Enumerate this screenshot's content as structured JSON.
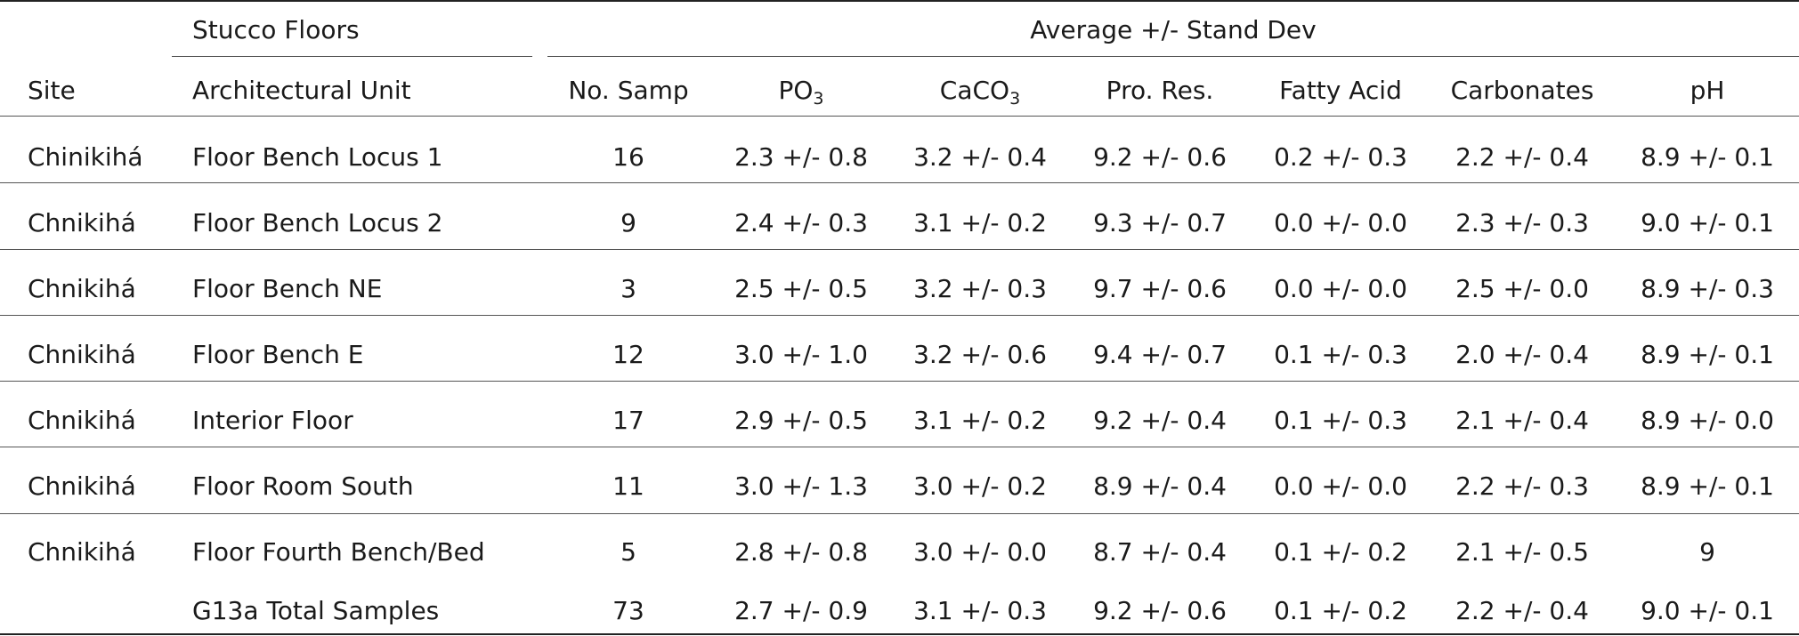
{
  "header": {
    "group_left": "Stucco Floors",
    "group_right": "Average +/- Stand Dev",
    "columns": {
      "site": "Site",
      "unit": "Architectural Unit",
      "nsamp": "No. Samp",
      "po3_main": "PO",
      "po3_sub": "3",
      "caco3_main": "CaCO",
      "caco3_sub": "3",
      "prores": "Pro. Res.",
      "fatty": "Fatty Acid",
      "carb": "Carbonates",
      "ph": "pH"
    }
  },
  "rows": [
    {
      "site": "Chinikihá",
      "unit": "Floor Bench Locus 1",
      "n": "16",
      "po3": "2.3 +/- 0.8",
      "caco3": "3.2 +/- 0.4",
      "prores": "9.2 +/- 0.6",
      "fatty": "0.2 +/- 0.3",
      "carb": "2.2 +/- 0.4",
      "ph": "8.9 +/- 0.1"
    },
    {
      "site": "Chnikihá",
      "unit": "Floor Bench Locus 2",
      "n": "9",
      "po3": "2.4 +/- 0.3",
      "caco3": "3.1 +/- 0.2",
      "prores": "9.3 +/- 0.7",
      "fatty": "0.0 +/- 0.0",
      "carb": "2.3 +/- 0.3",
      "ph": "9.0 +/- 0.1"
    },
    {
      "site": "Chnikihá",
      "unit": "Floor Bench NE",
      "n": "3",
      "po3": "2.5 +/- 0.5",
      "caco3": "3.2 +/- 0.3",
      "prores": "9.7 +/- 0.6",
      "fatty": "0.0 +/- 0.0",
      "carb": "2.5 +/- 0.0",
      "ph": "8.9 +/- 0.3"
    },
    {
      "site": "Chnikihá",
      "unit": "Floor Bench E",
      "n": "12",
      "po3": "3.0 +/- 1.0",
      "caco3": "3.2 +/- 0.6",
      "prores": "9.4 +/- 0.7",
      "fatty": "0.1 +/- 0.3",
      "carb": "2.0 +/- 0.4",
      "ph": "8.9 +/- 0.1"
    },
    {
      "site": "Chnikihá",
      "unit": "Interior Floor",
      "n": "17",
      "po3": "2.9 +/- 0.5",
      "caco3": "3.1 +/- 0.2",
      "prores": "9.2 +/- 0.4",
      "fatty": "0.1 +/- 0.3",
      "carb": "2.1 +/- 0.4",
      "ph": "8.9 +/- 0.0"
    },
    {
      "site": "Chnikihá",
      "unit": "Floor Room South",
      "n": "11",
      "po3": "3.0 +/- 1.3",
      "caco3": "3.0 +/- 0.2",
      "prores": "8.9 +/- 0.4",
      "fatty": "0.0 +/- 0.0",
      "carb": "2.2 +/- 0.3",
      "ph": "8.9 +/- 0.1"
    },
    {
      "site": "Chnikihá",
      "unit": "Floor Fourth Bench/Bed",
      "n": "5",
      "po3": "2.8 +/- 0.8",
      "caco3": "3.0 +/- 0.0",
      "prores": "8.7 +/- 0.4",
      "fatty": "0.1 +/- 0.2",
      "carb": "2.1 +/- 0.5",
      "ph": "9"
    },
    {
      "site": "",
      "unit": "G13a Total Samples",
      "n": "73",
      "po3": "2.7 +/- 0.9",
      "caco3": "3.1 +/- 0.3",
      "prores": "9.2 +/- 0.6",
      "fatty": "0.1 +/- 0.2",
      "carb": "2.2 +/- 0.4",
      "ph": "9.0 +/- 0.1"
    }
  ]
}
